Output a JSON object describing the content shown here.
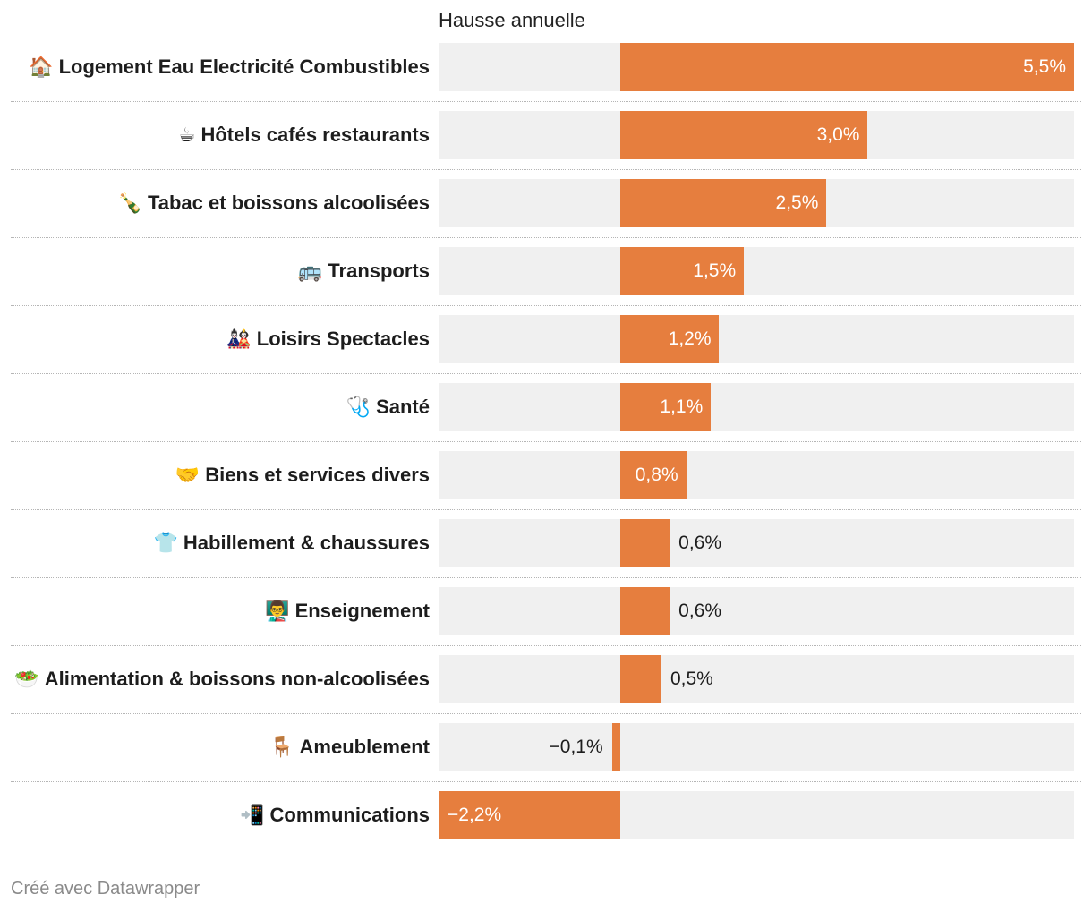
{
  "chart_data": {
    "type": "bar",
    "orientation": "horizontal",
    "column_title": "Hausse annuelle",
    "unit": "%",
    "xlim": [
      -2.2,
      5.5
    ],
    "bar_color": "#e67e3e",
    "track_color": "#f0f0f0",
    "categories": [
      {
        "icon": "🏠",
        "icon_name": "house-icon",
        "label": "Logement Eau Electricité Combustibles",
        "value": 5.5,
        "value_label": "5,5%"
      },
      {
        "icon": "☕",
        "icon_name": "coffee-icon",
        "label": "Hôtels cafés restaurants",
        "value": 3.0,
        "value_label": "3,0%"
      },
      {
        "icon": "🍾",
        "icon_name": "bottle-icon",
        "label": "Tabac et boissons alcoolisées",
        "value": 2.5,
        "value_label": "2,5%"
      },
      {
        "icon": "🚌",
        "icon_name": "bus-icon",
        "label": "Transports",
        "value": 1.5,
        "value_label": "1,5%"
      },
      {
        "icon": "🎎",
        "icon_name": "dolls-icon",
        "label": "Loisirs Spectacles",
        "value": 1.2,
        "value_label": "1,2%"
      },
      {
        "icon": "🩺",
        "icon_name": "stethoscope-icon",
        "label": "Santé",
        "value": 1.1,
        "value_label": "1,1%"
      },
      {
        "icon": "🤝",
        "icon_name": "handshake-icon",
        "label": "Biens et services divers",
        "value": 0.8,
        "value_label": "0,8%"
      },
      {
        "icon": "👕",
        "icon_name": "tshirt-icon",
        "label": "Habillement & chaussures",
        "value": 0.6,
        "value_label": "0,6%"
      },
      {
        "icon": "👨‍🏫",
        "icon_name": "teacher-icon",
        "label": "Enseignement",
        "value": 0.6,
        "value_label": "0,6%"
      },
      {
        "icon": "🥗",
        "icon_name": "salad-icon",
        "label": "Alimentation & boissons non-alcoolisées",
        "value": 0.5,
        "value_label": "0,5%"
      },
      {
        "icon": "🪑",
        "icon_name": "chair-icon",
        "label": "Ameublement",
        "value": -0.1,
        "value_label": "−0,1%"
      },
      {
        "icon": "📲",
        "icon_name": "mobile-phone-icon",
        "label": "Communications",
        "value": -2.2,
        "value_label": "−2,2%"
      }
    ]
  },
  "footer": {
    "credit": "Créé avec Datawrapper"
  }
}
